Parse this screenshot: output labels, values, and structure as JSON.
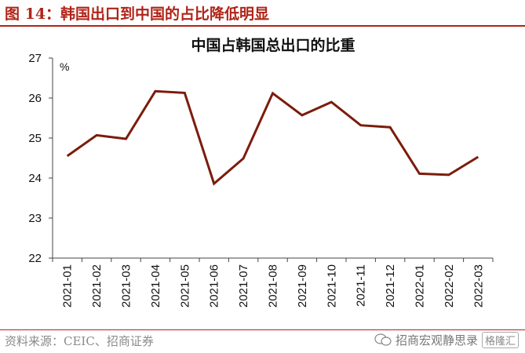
{
  "figure": {
    "title": "图 14：韩国出口到中国的占比降低明显",
    "source": "资料来源：CEIC、招商证券",
    "watermark": "招商宏观静思录",
    "watermark_badge": "格隆汇"
  },
  "colors": {
    "accent": "#b02418",
    "line": "#7b1c0c",
    "axis": "#444444"
  },
  "chart_data": {
    "type": "line",
    "title": "中国占韩国总出口的比重",
    "ylabel": "%",
    "xlabel": "",
    "ylim": [
      22,
      27
    ],
    "yticks": [
      "22",
      "23",
      "24",
      "25",
      "26",
      "27"
    ],
    "grid": false,
    "legend": "none",
    "categories": [
      "2021-01",
      "2021-02",
      "2021-03",
      "2021-04",
      "2021-05",
      "2021-06",
      "2021-07",
      "2021-08",
      "2021-09",
      "2021-10",
      "2021-11",
      "2021-12",
      "2022-01",
      "2022-02",
      "2022-03"
    ],
    "series": [
      {
        "values": [
          24.55,
          25.07,
          24.98,
          26.17,
          26.13,
          23.86,
          24.49,
          26.12,
          25.57,
          25.9,
          25.32,
          25.27,
          24.11,
          24.08,
          24.53
        ]
      }
    ]
  }
}
